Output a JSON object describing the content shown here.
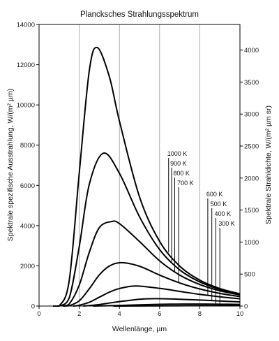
{
  "chart_data": {
    "type": "line",
    "title": "Plancksches Strahlungsspektrum",
    "xlabel": "Wellenlänge, µm",
    "ylabel": "Spektrale spezifische Ausstrahlung, W/(m² µm)",
    "y2label": "Spektrale Strahldichte, W/(m² µm sr)",
    "xlim": [
      0,
      10
    ],
    "ylim": [
      0,
      14000
    ],
    "y2lim": [
      0,
      4400
    ],
    "xticks": [
      "0",
      "2",
      "4",
      "6",
      "8",
      "10"
    ],
    "yticks": [
      "0",
      "2000",
      "4000",
      "6000",
      "8000",
      "10000",
      "12000",
      "14000"
    ],
    "y2ticks": [
      "0",
      "500",
      "1000",
      "1500",
      "2000",
      "2500",
      "3000",
      "3500",
      "4000"
    ],
    "grid": "vertical",
    "series": [
      {
        "name": "1000 K",
        "temperature": 1000,
        "x": [
          1,
          1.5,
          2,
          2.5,
          2.9,
          3.5,
          4,
          5,
          6,
          7,
          8,
          9,
          10
        ],
        "values": [
          3,
          1260,
          6600,
          11700,
          12850,
          11400,
          9200,
          5430,
          3220,
          1990,
          1290,
          870,
          610
        ]
      },
      {
        "name": "900 K",
        "temperature": 900,
        "x": [
          1,
          1.5,
          2,
          2.5,
          3.2,
          4,
          5,
          6,
          7,
          8,
          9,
          10
        ],
        "values": [
          1,
          400,
          2950,
          6050,
          7600,
          6600,
          4440,
          2810,
          1800,
          1200,
          830,
          590
        ]
      },
      {
        "name": "800 K",
        "temperature": 800,
        "x": [
          1.5,
          2,
          2.5,
          3,
          3.6,
          4,
          5,
          6,
          7,
          8,
          9,
          10
        ],
        "values": [
          100,
          1040,
          2670,
          3900,
          4200,
          4100,
          3210,
          2250,
          1540,
          1070,
          760,
          550
        ]
      },
      {
        "name": "700 K",
        "temperature": 700,
        "x": [
          1.5,
          2,
          2.5,
          3,
          3.5,
          4.1,
          5,
          6,
          7,
          8,
          9,
          10
        ],
        "values": [
          17,
          260,
          860,
          1550,
          1990,
          2160,
          1980,
          1540,
          1150,
          850,
          630,
          470
        ]
      },
      {
        "name": "600 K",
        "temperature": 600,
        "x": [
          2,
          2.5,
          3,
          3.5,
          4,
          4.8,
          6,
          7,
          8,
          9,
          10
        ],
        "values": [
          40,
          190,
          440,
          690,
          870,
          1000,
          880,
          730,
          580,
          460,
          360
        ]
      },
      {
        "name": "500 K",
        "temperature": 500,
        "x": [
          2.5,
          3,
          3.5,
          4,
          5,
          5.8,
          7,
          8,
          9,
          10
        ],
        "values": [
          25,
          75,
          150,
          220,
          340,
          370,
          340,
          300,
          250,
          210
        ]
      },
      {
        "name": "400 K",
        "temperature": 400,
        "x": [
          3,
          4,
          5,
          6,
          7.2,
          8,
          9,
          10
        ],
        "values": [
          7,
          30,
          60,
          85,
          100,
          98,
          92,
          84
        ]
      },
      {
        "name": "300 K",
        "temperature": 300,
        "x": [
          4,
          5,
          6,
          7,
          8,
          9.6,
          10
        ],
        "values": [
          1,
          5,
          10,
          15,
          20,
          24,
          24
        ]
      }
    ],
    "curve_labels": [
      {
        "text": "1000 K",
        "x": 6.45
      },
      {
        "text": "900 K",
        "x": 6.6
      },
      {
        "text": "800 K",
        "x": 6.75
      },
      {
        "text": "700 K",
        "x": 6.95
      },
      {
        "text": "600 K",
        "x": 8.4
      },
      {
        "text": "500 K",
        "x": 8.6
      },
      {
        "text": "400 K",
        "x": 8.8
      },
      {
        "text": "300 K",
        "x": 9.0
      }
    ]
  }
}
